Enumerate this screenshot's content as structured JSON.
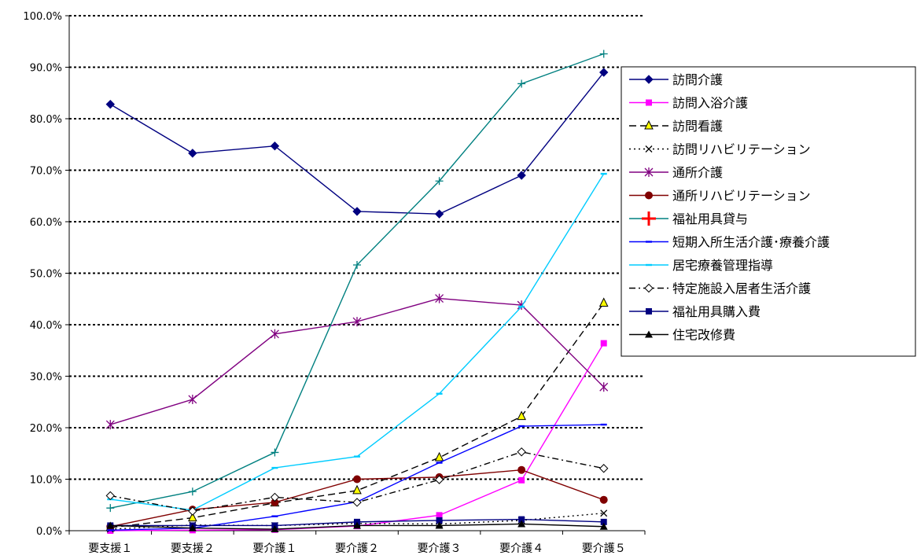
{
  "chart_data": {
    "type": "line",
    "title": "",
    "xlabel": "",
    "ylabel": "",
    "categories": [
      "要支援１",
      "要支援２",
      "要介護１",
      "要介護２",
      "要介護３",
      "要介護４",
      "要介護５"
    ],
    "ylim": [
      0,
      100
    ],
    "yticks": [
      "0.0%",
      "10.0%",
      "20.0%",
      "30.0%",
      "40.0%",
      "50.0%",
      "60.0%",
      "70.0%",
      "80.0%",
      "90.0%",
      "100.0%"
    ],
    "grid": "horizontal dotted",
    "legend_position": "right",
    "series": [
      {
        "name": "訪問介護",
        "color": "#000080",
        "dash": "solid",
        "marker": "diamond",
        "values": [
          82.8,
          73.3,
          74.7,
          62.0,
          61.5,
          69.0,
          89.0
        ]
      },
      {
        "name": "訪問入浴介護",
        "color": "#FF00FF",
        "dash": "solid",
        "marker": "square",
        "values": [
          0.0,
          0.1,
          0.2,
          0.9,
          3.0,
          9.8,
          36.4
        ]
      },
      {
        "name": "訪問看護",
        "color": "#000000",
        "dash": "longdash",
        "marker": "triangle-yellow",
        "values": [
          0.6,
          2.5,
          5.4,
          7.8,
          14.2,
          22.2,
          44.2
        ]
      },
      {
        "name": "訪問リハビリテーション",
        "color": "#000000",
        "dash": "dotted",
        "marker": "x",
        "values": [
          0.3,
          1.1,
          1.0,
          1.4,
          1.3,
          2.0,
          3.4
        ]
      },
      {
        "name": "通所介護",
        "color": "#800080",
        "dash": "solid",
        "marker": "asterisk",
        "values": [
          20.6,
          25.5,
          38.2,
          40.6,
          45.1,
          43.8,
          27.9
        ]
      },
      {
        "name": "通所リハビリテーション",
        "color": "#800000",
        "dash": "solid",
        "marker": "circle",
        "values": [
          0.8,
          4.1,
          5.5,
          10.0,
          10.4,
          11.8,
          6.0
        ]
      },
      {
        "name": "福祉用具貸与",
        "color": "#008080",
        "dash": "solid",
        "marker": "plus",
        "values": [
          4.4,
          7.6,
          15.2,
          51.6,
          67.9,
          86.8,
          92.6
        ]
      },
      {
        "name": "短期入所生活介護･療養介護",
        "color": "#0000FF",
        "dash": "solid",
        "marker": "dash",
        "values": [
          0.1,
          0.5,
          2.8,
          5.6,
          13.2,
          20.3,
          20.6
        ]
      },
      {
        "name": "居宅療養管理指導",
        "color": "#00CCFF",
        "dash": "solid",
        "marker": "dash",
        "values": [
          6.1,
          4.0,
          12.2,
          14.4,
          26.6,
          43.5,
          69.3
        ]
      },
      {
        "name": "特定施設入居者生活介護",
        "color": "#000000",
        "dash": "dashdot",
        "marker": "diamond-open",
        "values": [
          6.8,
          3.8,
          6.5,
          5.5,
          9.9,
          15.3,
          12.1
        ]
      },
      {
        "name": "福祉用具購入費",
        "color": "#000080",
        "dash": "solid",
        "marker": "square",
        "values": [
          1.0,
          1.0,
          1.0,
          1.7,
          2.0,
          2.2,
          1.7
        ]
      },
      {
        "name": "住宅改修費",
        "color": "#000000",
        "dash": "solid",
        "marker": "triangle",
        "values": [
          1.0,
          0.5,
          0.3,
          1.0,
          1.0,
          1.3,
          0.8
        ]
      }
    ]
  }
}
